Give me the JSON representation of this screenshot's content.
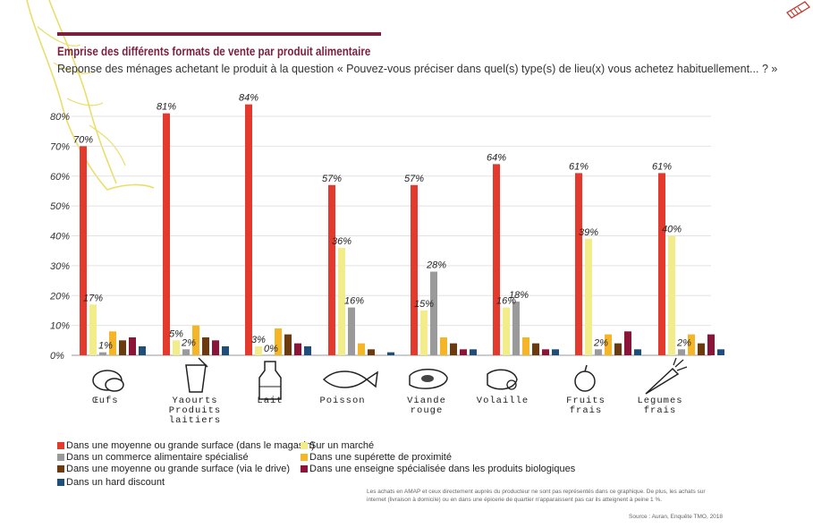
{
  "header": {
    "title": "Emprise des différents formats de vente par produit alimentaire",
    "subtitle": "Reponse des ménages achetant le produit à la question « Pouvez-vous préciser dans quel(s) type(s) de lieu(x) vous achetez habituellement... ? »"
  },
  "chart_data": {
    "type": "bar",
    "title": "Emprise des différents formats de vente par produit alimentaire",
    "ylim": [
      0,
      80
    ],
    "grid": true,
    "legend_position": "bottom-left",
    "y_ticks": [
      "0%",
      "10%",
      "20%",
      "30%",
      "40%",
      "50%",
      "60%",
      "70%",
      "80%"
    ],
    "categories": [
      "Œufs",
      "Yaourts Produits laitiers",
      "Lait",
      "Poisson",
      "Viande rouge",
      "Volaille",
      "Fruits frais",
      "Legumes frais"
    ],
    "category_icons": [
      "eggs-icon",
      "yogurt-icon",
      "milk-bottle-icon",
      "fish-icon",
      "steak-icon",
      "chicken-icon",
      "apple-icon",
      "carrot-icon"
    ],
    "series": [
      {
        "name": "Dans une moyenne ou grande surface (dans le magasin)",
        "color": "#e43a2d",
        "values": [
          70,
          81,
          84,
          57,
          57,
          64,
          61,
          61
        ]
      },
      {
        "name": "Sur un marché",
        "color": "#f3ec8a",
        "values": [
          17,
          5,
          3,
          36,
          15,
          16,
          39,
          40
        ]
      },
      {
        "name": "Dans un commerce alimentaire spécialisé",
        "color": "#9a9a9a",
        "values": [
          1,
          2,
          0,
          16,
          28,
          18,
          2,
          2
        ]
      },
      {
        "name": "Dans une supérette de proximité",
        "color": "#f5b526",
        "values": [
          8,
          10,
          9,
          4,
          6,
          6,
          7,
          7
        ]
      },
      {
        "name": "Dans une moyenne ou grande surface (via le drive)",
        "color": "#6b3a0e",
        "values": [
          5,
          6,
          7,
          2,
          4,
          4,
          4,
          4
        ]
      },
      {
        "name": "Dans une enseigne spécialisée dans les produits biologiques",
        "color": "#8a1538",
        "values": [
          6,
          5,
          4,
          0,
          2,
          2,
          8,
          7
        ]
      },
      {
        "name": "Dans un hard discount",
        "color": "#1f4e7a",
        "values": [
          3,
          3,
          3,
          1,
          2,
          2,
          2,
          2
        ]
      }
    ],
    "data_labels": [
      {
        "category": 0,
        "series": 0,
        "text": "70%"
      },
      {
        "category": 0,
        "series": 1,
        "text": "17%"
      },
      {
        "category": 0,
        "series": 2,
        "text": "1%"
      },
      {
        "category": 1,
        "series": 0,
        "text": "81%"
      },
      {
        "category": 1,
        "series": 1,
        "text": "5%"
      },
      {
        "category": 1,
        "series": 2,
        "text": "2%"
      },
      {
        "category": 2,
        "series": 0,
        "text": "84%"
      },
      {
        "category": 2,
        "series": 1,
        "text": "3%"
      },
      {
        "category": 2,
        "series": 2,
        "text": "0%"
      },
      {
        "category": 3,
        "series": 0,
        "text": "57%"
      },
      {
        "category": 3,
        "series": 1,
        "text": "36%"
      },
      {
        "category": 3,
        "series": 2,
        "text": "16%"
      },
      {
        "category": 4,
        "series": 0,
        "text": "57%"
      },
      {
        "category": 4,
        "series": 1,
        "text": "15%"
      },
      {
        "category": 4,
        "series": 2,
        "text": "28%"
      },
      {
        "category": 5,
        "series": 0,
        "text": "64%"
      },
      {
        "category": 5,
        "series": 1,
        "text": "16%"
      },
      {
        "category": 5,
        "series": 2,
        "text": "18%"
      },
      {
        "category": 6,
        "series": 0,
        "text": "61%"
      },
      {
        "category": 6,
        "series": 1,
        "text": "39%"
      },
      {
        "category": 6,
        "series": 2,
        "text": "2%"
      },
      {
        "category": 7,
        "series": 0,
        "text": "61%"
      },
      {
        "category": 7,
        "series": 1,
        "text": "40%"
      },
      {
        "category": 7,
        "series": 2,
        "text": "2%"
      }
    ]
  },
  "footer": {
    "note": "Les achats en AMAP et ceux directement auprès du producteur ne sont pas représentés dans ce graphique. De plus, les achats sur internet (livraison à domicile) ou en dans une épicerie de quartier n'apparaissent pas car ils atteignent à peine 1 %.",
    "source": "Source : Auran, Enquête TMO, 2018"
  }
}
